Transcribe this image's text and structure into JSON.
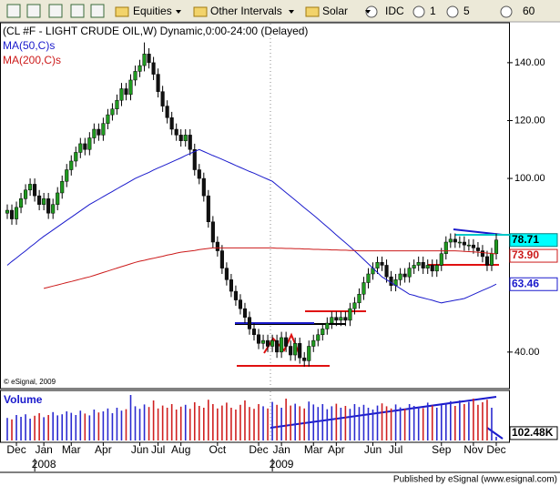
{
  "toolbar": {
    "items": [
      "Equities",
      "Other Intervals",
      "Solar",
      "IDC",
      "1",
      "5",
      "60"
    ]
  },
  "chart_data": {
    "type": "candlestick",
    "title": "(CL #F - LIGHT CRUDE OIL,W) Dynamic,0:00-24:00 (Delayed)",
    "credit": "© eSignal, 2009",
    "footer": "Published by eSignal (www.esignal.com)",
    "categories": [
      null,
      null,
      "Dec",
      null,
      null,
      null,
      null,
      null,
      "Jan",
      null,
      null,
      null,
      null,
      null,
      "Mar",
      null,
      null,
      null,
      null,
      null,
      null,
      "Apr",
      null,
      null,
      null,
      null,
      null,
      null,
      null,
      "Jun",
      null,
      null,
      null,
      "Jul",
      null,
      null,
      null,
      null,
      "Aug",
      null,
      null,
      null,
      null,
      null,
      null,
      null,
      "Oct",
      null,
      null,
      null,
      null,
      null,
      null,
      null,
      null,
      "Dec",
      null,
      null,
      null,
      null,
      "Jan",
      null,
      null,
      null,
      null,
      null,
      null,
      "Mar",
      null,
      null,
      null,
      null,
      "Apr",
      null,
      null,
      null,
      null,
      null,
      null,
      null,
      "Jun",
      null,
      null,
      null,
      null,
      "Jul",
      null,
      null,
      null,
      null,
      null,
      null,
      null,
      null,
      null,
      "Sep",
      null,
      null,
      null,
      null,
      null,
      null,
      "Nov",
      null,
      null,
      null,
      null,
      "Dec"
    ],
    "x_groups": [
      {
        "label": "2008",
        "at": 8
      },
      {
        "label": "2009",
        "at": 60
      }
    ],
    "open": [
      88,
      89,
      86,
      90,
      93,
      96,
      98,
      94,
      91,
      93,
      88,
      91,
      95,
      99,
      103,
      106,
      109,
      112,
      110,
      114,
      117,
      115,
      119,
      122,
      124,
      127,
      131,
      129,
      134,
      137,
      139,
      143,
      140,
      136,
      130,
      125,
      121,
      117,
      115,
      113,
      115,
      110,
      103,
      100,
      94,
      85,
      78,
      75,
      69,
      65,
      61,
      58,
      55,
      52,
      48,
      46,
      43,
      44,
      42,
      44,
      40,
      45,
      42,
      39,
      43,
      38,
      37,
      42,
      44,
      46,
      48,
      50,
      52,
      51,
      52,
      51,
      55,
      57,
      60,
      64,
      67,
      69,
      71,
      70,
      66,
      63,
      65,
      67,
      66,
      69,
      70,
      71,
      69,
      70,
      68,
      70,
      74,
      78,
      79,
      78,
      78,
      77,
      77,
      76,
      75,
      73,
      70,
      74
    ],
    "high": [
      91,
      91,
      92,
      95,
      98,
      100,
      100,
      96,
      95,
      95,
      93,
      97,
      101,
      105,
      108,
      111,
      114,
      114,
      116,
      119,
      119,
      121,
      124,
      126,
      129,
      133,
      133,
      136,
      139,
      141,
      147,
      145,
      142,
      138,
      132,
      127,
      123,
      119,
      117,
      117,
      117,
      112,
      105,
      102,
      96,
      87,
      80,
      77,
      71,
      67,
      63,
      60,
      57,
      54,
      50,
      48,
      46,
      46,
      46,
      46,
      47,
      47,
      44,
      45,
      45,
      40,
      44,
      46,
      48,
      50,
      52,
      54,
      54,
      54,
      54,
      57,
      59,
      62,
      66,
      69,
      71,
      73,
      73,
      72,
      68,
      67,
      69,
      69,
      71,
      72,
      73,
      73,
      72,
      72,
      72,
      76,
      80,
      81,
      81,
      80,
      80,
      79,
      79,
      78,
      77,
      75,
      76,
      81
    ],
    "low": [
      86,
      84,
      84,
      88,
      91,
      94,
      92,
      89,
      89,
      86,
      86,
      89,
      93,
      97,
      101,
      104,
      107,
      108,
      108,
      112,
      113,
      113,
      117,
      120,
      122,
      125,
      127,
      127,
      132,
      135,
      137,
      138,
      134,
      128,
      123,
      119,
      115,
      113,
      111,
      111,
      108,
      101,
      98,
      92,
      83,
      76,
      73,
      67,
      63,
      59,
      56,
      53,
      50,
      46,
      44,
      41,
      41,
      40,
      40,
      38,
      38,
      40,
      37,
      37,
      36,
      35,
      35,
      40,
      42,
      44,
      46,
      48,
      49,
      49,
      49,
      49,
      53,
      55,
      58,
      62,
      65,
      67,
      68,
      64,
      61,
      61,
      63,
      64,
      64,
      67,
      68,
      67,
      67,
      66,
      66,
      68,
      72,
      76,
      76,
      76,
      75,
      75,
      74,
      73,
      71,
      68,
      68,
      72
    ],
    "close": [
      89,
      86,
      90,
      93,
      96,
      98,
      94,
      91,
      93,
      88,
      91,
      95,
      99,
      103,
      106,
      109,
      112,
      110,
      114,
      117,
      115,
      119,
      122,
      124,
      127,
      131,
      129,
      134,
      137,
      139,
      143,
      140,
      136,
      130,
      125,
      121,
      117,
      115,
      113,
      115,
      110,
      103,
      100,
      94,
      85,
      78,
      75,
      69,
      65,
      61,
      58,
      55,
      52,
      48,
      46,
      43,
      44,
      42,
      44,
      40,
      45,
      42,
      39,
      43,
      38,
      37,
      42,
      44,
      46,
      48,
      50,
      52,
      51,
      52,
      51,
      55,
      57,
      60,
      64,
      67,
      69,
      71,
      70,
      66,
      63,
      65,
      67,
      66,
      69,
      70,
      71,
      69,
      70,
      68,
      70,
      74,
      78,
      79,
      78,
      78,
      77,
      77,
      76,
      75,
      73,
      70,
      74,
      78.71
    ],
    "close_label": "78.71",
    "colors": {
      "up": "#1f9a1f",
      "down": "#111111",
      "wick": "#000000"
    },
    "ylim": [
      28,
      156
    ],
    "yticks": [
      {
        "value": 40,
        "label": "40.00"
      },
      {
        "value": 100,
        "label": "100.00"
      },
      {
        "value": 120,
        "label": "120.00"
      },
      {
        "value": 140,
        "label": "140.00"
      }
    ],
    "lines": [
      {
        "name": "MA(50,C)s",
        "color": "#1a1acc",
        "last_label": "63.46",
        "values": [
          70,
          71.3,
          72.5,
          73.8,
          75,
          76.3,
          77.5,
          78.8,
          80,
          81.1,
          82.2,
          83.3,
          84.4,
          85.5,
          86.6,
          87.7,
          88.8,
          89.9,
          91,
          91.9,
          92.8,
          93.7,
          94.6,
          95.5,
          96.4,
          97.3,
          98.2,
          99.1,
          100,
          100.7,
          101.4,
          102.1,
          102.9,
          103.6,
          104.3,
          105,
          105.7,
          106.4,
          107.1,
          107.9,
          108.6,
          109.3,
          110,
          109.3,
          108.6,
          107.9,
          107.3,
          106.6,
          105.9,
          105.2,
          104.5,
          103.8,
          103.1,
          102.4,
          101.8,
          101.1,
          100.4,
          99.7,
          99,
          97.7,
          96.4,
          95.1,
          93.8,
          92.5,
          91.2,
          89.9,
          88.6,
          87.3,
          86,
          84.6,
          83.3,
          81.9,
          80.5,
          79.1,
          77.8,
          76.4,
          75,
          73.5,
          72,
          70.5,
          69,
          67.5,
          66,
          65,
          64,
          63,
          62,
          61,
          60,
          59.6,
          59.1,
          58.7,
          58.3,
          57.9,
          57.4,
          57,
          57.3,
          57.6,
          57.9,
          58.2,
          58.5,
          59.2,
          59.9,
          60.6,
          61.3,
          62,
          62.7,
          63.46
        ]
      },
      {
        "name": "MA(200,C)s",
        "color": "#cc1a1a",
        "last_label": "73.90",
        "values": [
          null,
          null,
          null,
          null,
          null,
          null,
          null,
          null,
          62,
          62.4,
          62.8,
          63.2,
          63.6,
          64,
          64.4,
          64.8,
          65.2,
          65.6,
          66,
          66.5,
          67,
          67.5,
          68,
          68.5,
          69,
          69.5,
          70,
          70.5,
          71,
          71.4,
          71.7,
          72.1,
          72.4,
          72.8,
          73.1,
          73.5,
          73.8,
          74.2,
          74.5,
          74.7,
          74.9,
          75.1,
          75.4,
          75.6,
          75.8,
          76,
          76,
          76,
          76,
          76,
          76,
          76,
          76,
          76,
          76,
          76,
          76,
          76,
          76,
          75.9,
          75.9,
          75.8,
          75.8,
          75.7,
          75.7,
          75.6,
          75.6,
          75.5,
          75.5,
          75.4,
          75.4,
          75.3,
          75.3,
          75.2,
          75.2,
          75.1,
          75.1,
          75,
          75,
          75,
          75,
          75,
          75,
          75,
          75,
          75,
          75,
          75,
          75,
          75,
          75,
          75,
          75,
          75,
          75,
          75,
          75,
          75,
          75,
          74.9,
          74.8,
          74.7,
          74.6,
          74.5,
          74.4,
          74.2,
          74.1,
          73.9
        ]
      }
    ],
    "volume": {
      "name": "Volume",
      "ylim": [
        0,
        1300
      ],
      "last_label": "102.48K",
      "colors": {
        "up": "#2a2ad0",
        "down": "#d02020"
      },
      "values": [
        620,
        580,
        700,
        650,
        720,
        600,
        680,
        750,
        640,
        700,
        780,
        690,
        720,
        800,
        760,
        700,
        820,
        740,
        690,
        850,
        770,
        800,
        880,
        750,
        900,
        820,
        860,
        1250,
        940,
        870,
        990,
        920,
        1100,
        880,
        960,
        900,
        1000,
        850,
        930,
        980,
        870,
        1050,
        950,
        900,
        1120,
        1000,
        880,
        960,
        1040,
        900,
        850,
        980,
        1100,
        920,
        870,
        1000,
        940,
        880,
        1060,
        980,
        900,
        1150,
        960,
        1010,
        940,
        880,
        1070,
        990,
        920,
        1000,
        860,
        940,
        1010,
        900,
        950,
        870,
        1000,
        920,
        980,
        900,
        850,
        960,
        1020,
        940,
        880,
        990,
        910,
        870,
        1000,
        950,
        930,
        890,
        1040,
        960,
        900,
        980,
        1020,
        1080,
        950,
        1100,
        1000,
        1060,
        1150,
        980,
        1050,
        1120,
        900,
        102.48
      ]
    }
  }
}
